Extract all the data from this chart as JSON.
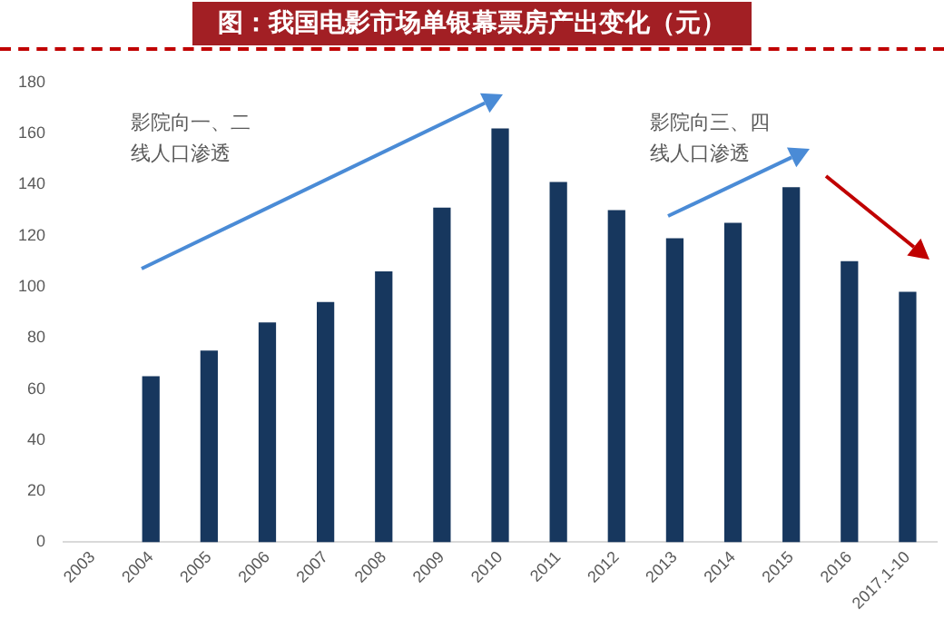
{
  "chart_data": {
    "type": "bar",
    "title": "图：我国电影市场单银幕票房产出变化（元）",
    "categories": [
      "2003",
      "2004",
      "2005",
      "2006",
      "2007",
      "2008",
      "2009",
      "2010",
      "2011",
      "2012",
      "2013",
      "2014",
      "2015",
      "2016",
      "2017.1-10"
    ],
    "values": [
      null,
      65,
      75,
      86,
      94,
      106,
      131,
      162,
      141,
      130,
      119,
      125,
      139,
      110,
      98
    ],
    "color": "#17375e",
    "ylim": [
      0,
      180
    ],
    "yticks": [
      0,
      20,
      40,
      60,
      80,
      100,
      120,
      140,
      160,
      180
    ],
    "grid": false,
    "legend": false,
    "annotations": [
      "影院向一、二线人口渗透",
      "影院向三、四线人口渗透"
    ]
  }
}
